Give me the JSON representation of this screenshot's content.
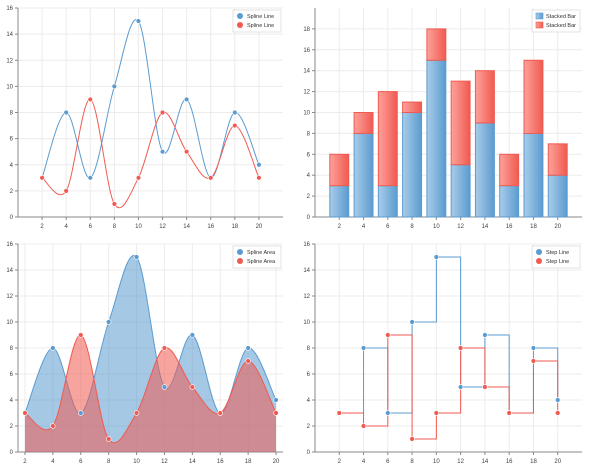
{
  "colors": {
    "blue": "#5b9bd0",
    "blue_light": "#a9cce9",
    "red": "#f05a50",
    "red_light": "#fca29b",
    "grid": "#ececec",
    "axis": "#888888",
    "tick_text": "#404040"
  },
  "chart_data": [
    {
      "type": "line",
      "subtype": "spline",
      "x": [
        2,
        4,
        6,
        8,
        10,
        12,
        14,
        16,
        18,
        20
      ],
      "xlim": [
        0,
        22
      ],
      "ylim": [
        0,
        16
      ],
      "x_ticks": [
        2,
        4,
        6,
        8,
        10,
        12,
        14,
        16,
        18,
        20
      ],
      "y_ticks": [
        0,
        2,
        4,
        6,
        8,
        10,
        12,
        14,
        16
      ],
      "grid": true,
      "legend_position": "top-right",
      "series": [
        {
          "name": "Spline Line",
          "color": "blue",
          "values": [
            3,
            8,
            3,
            10,
            15,
            5,
            9,
            3,
            8,
            4
          ]
        },
        {
          "name": "Spline Line",
          "color": "red",
          "values": [
            3,
            2,
            9,
            1,
            3,
            8,
            5,
            3,
            7,
            3
          ]
        }
      ]
    },
    {
      "type": "bar",
      "subtype": "stacked",
      "x": [
        2,
        4,
        6,
        8,
        10,
        12,
        14,
        16,
        18,
        20
      ],
      "xlim": [
        0,
        22
      ],
      "ylim": [
        0,
        20
      ],
      "x_ticks": [
        2,
        4,
        6,
        8,
        10,
        12,
        14,
        16,
        18,
        20
      ],
      "y_ticks": [
        0,
        2,
        4,
        6,
        8,
        10,
        12,
        14,
        16,
        18
      ],
      "grid": true,
      "legend_position": "top-right",
      "series": [
        {
          "name": "Stacked Bar",
          "color": "blue",
          "values": [
            3,
            8,
            3,
            10,
            15,
            5,
            9,
            3,
            8,
            4
          ]
        },
        {
          "name": "Stacked Bar",
          "color": "red",
          "values": [
            3,
            2,
            9,
            1,
            3,
            8,
            5,
            3,
            7,
            3
          ]
        }
      ]
    },
    {
      "type": "area",
      "subtype": "spline",
      "x": [
        2,
        4,
        6,
        8,
        10,
        12,
        14,
        16,
        18,
        20
      ],
      "xlim": [
        1.5,
        20.5
      ],
      "ylim": [
        0,
        16
      ],
      "x_ticks": [
        2,
        4,
        6,
        8,
        10,
        12,
        14,
        16,
        18,
        20
      ],
      "y_ticks": [
        0,
        2,
        4,
        6,
        8,
        10,
        12,
        14,
        16
      ],
      "grid": true,
      "legend_position": "top-right",
      "series": [
        {
          "name": "Spline Area",
          "color": "blue",
          "values": [
            3,
            8,
            3,
            10,
            15,
            5,
            9,
            3,
            8,
            4
          ]
        },
        {
          "name": "Spline Area",
          "color": "red",
          "values": [
            3,
            2,
            9,
            1,
            3,
            8,
            5,
            3,
            7,
            3
          ]
        }
      ]
    },
    {
      "type": "line",
      "subtype": "step",
      "x": [
        2,
        4,
        6,
        8,
        10,
        12,
        14,
        16,
        18,
        20
      ],
      "xlim": [
        0,
        22
      ],
      "ylim": [
        0,
        16
      ],
      "x_ticks": [
        2,
        4,
        6,
        8,
        10,
        12,
        14,
        16,
        18,
        20
      ],
      "y_ticks": [
        0,
        2,
        4,
        6,
        8,
        10,
        12,
        14,
        16
      ],
      "grid": true,
      "legend_position": "top-right",
      "series": [
        {
          "name": "Step Line",
          "color": "blue",
          "values": [
            3,
            8,
            3,
            10,
            15,
            5,
            9,
            3,
            8,
            4
          ]
        },
        {
          "name": "Step Line",
          "color": "red",
          "values": [
            3,
            2,
            9,
            1,
            3,
            8,
            5,
            3,
            7,
            3
          ]
        }
      ]
    }
  ]
}
